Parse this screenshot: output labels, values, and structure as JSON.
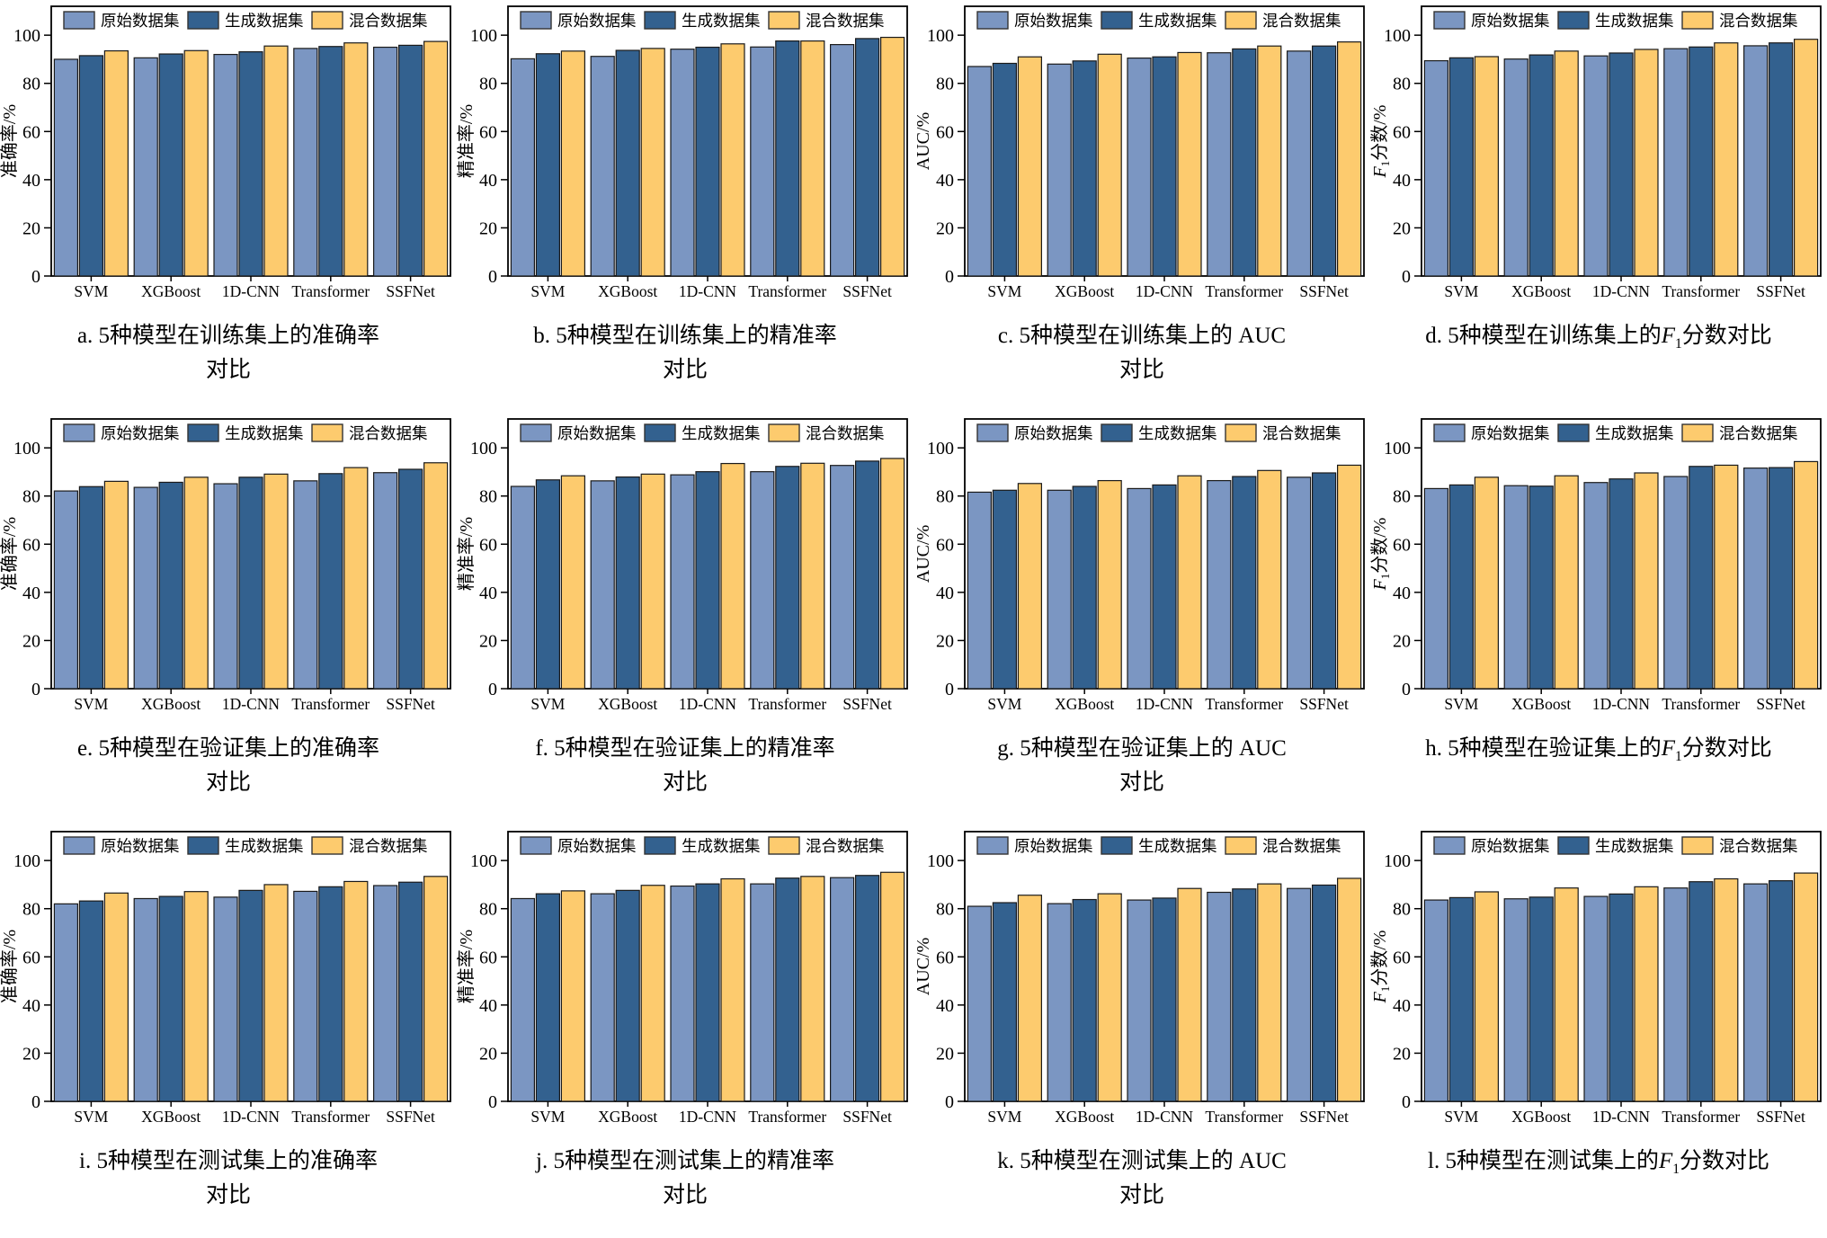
{
  "figure": {
    "background": "#ffffff",
    "series_names": [
      "原始数据集",
      "生成数据集",
      "混合数据集"
    ],
    "series_colors": [
      "#7B96C2",
      "#33618F",
      "#FDCB6E"
    ],
    "bar_edge_color": "#1a1a1a",
    "axis_color": "#000000",
    "categories": [
      "SVM",
      "XGBoost",
      "1D-CNN",
      "Transformer",
      "SSFNet"
    ],
    "yticks": [
      0,
      20,
      40,
      60,
      80,
      100
    ],
    "ylim": [
      0,
      112
    ],
    "legend_position": "top-inside",
    "grid": false
  },
  "chart_data": [
    {
      "id": "a",
      "type": "bar",
      "ylabel": "准确率/%",
      "xlabel": "",
      "caption_line1": "a. 5种模型在训练集上的准确率",
      "caption_line2": "对比",
      "categories": [
        "SVM",
        "XGBoost",
        "1D-CNN",
        "Transformer",
        "SSFNet"
      ],
      "ylim": [
        0,
        112
      ],
      "series": [
        {
          "name": "原始数据集",
          "values": [
            90.0,
            90.6,
            92.0,
            94.5,
            95.0
          ]
        },
        {
          "name": "生成数据集",
          "values": [
            91.5,
            92.2,
            93.1,
            95.3,
            95.8
          ]
        },
        {
          "name": "混合数据集",
          "values": [
            93.5,
            93.6,
            95.5,
            96.8,
            97.4
          ]
        }
      ]
    },
    {
      "id": "b",
      "type": "bar",
      "ylabel": "精准率/%",
      "xlabel": "",
      "caption_line1": "b. 5种模型在训练集上的精准率",
      "caption_line2": "对比",
      "categories": [
        "SVM",
        "XGBoost",
        "1D-CNN",
        "Transformer",
        "SSFNet"
      ],
      "ylim": [
        0,
        112
      ],
      "series": [
        {
          "name": "原始数据集",
          "values": [
            90.2,
            91.2,
            94.2,
            95.1,
            96.1
          ]
        },
        {
          "name": "生成数据集",
          "values": [
            92.3,
            93.7,
            95.0,
            97.6,
            98.6
          ]
        },
        {
          "name": "混合数据集",
          "values": [
            93.4,
            94.5,
            96.4,
            97.6,
            99.1
          ]
        }
      ]
    },
    {
      "id": "c",
      "type": "bar",
      "ylabel": "AUC/%",
      "xlabel": "",
      "caption_line1": "c. 5种模型在训练集上的 AUC",
      "caption_line2": "对比",
      "categories": [
        "SVM",
        "XGBoost",
        "1D-CNN",
        "Transformer",
        "SSFNet"
      ],
      "ylim": [
        0,
        112
      ],
      "series": [
        {
          "name": "原始数据集",
          "values": [
            87.0,
            88.0,
            90.5,
            92.7,
            93.4
          ]
        },
        {
          "name": "生成数据集",
          "values": [
            88.3,
            89.3,
            91.0,
            94.3,
            95.5
          ]
        },
        {
          "name": "混合数据集",
          "values": [
            91.0,
            92.1,
            92.8,
            95.5,
            97.2
          ]
        }
      ]
    },
    {
      "id": "d",
      "type": "bar",
      "ylabel": "F1分数/%",
      "xlabel": "",
      "caption_line1": "d. 5种模型在训练集上的F1分数对比",
      "caption_line2": "",
      "categories": [
        "SVM",
        "XGBoost",
        "1D-CNN",
        "Transformer",
        "SSFNet"
      ],
      "ylim": [
        0,
        112
      ],
      "series": [
        {
          "name": "原始数据集",
          "values": [
            89.4,
            90.1,
            91.4,
            94.4,
            95.6
          ]
        },
        {
          "name": "生成数据集",
          "values": [
            90.6,
            91.8,
            92.6,
            95.1,
            96.8
          ]
        },
        {
          "name": "混合数据集",
          "values": [
            91.1,
            93.4,
            94.1,
            96.8,
            98.3
          ]
        }
      ]
    },
    {
      "id": "e",
      "type": "bar",
      "ylabel": "准确率/%",
      "xlabel": "",
      "caption_line1": "e. 5种模型在验证集上的准确率",
      "caption_line2": "对比",
      "categories": [
        "SVM",
        "XGBoost",
        "1D-CNN",
        "Transformer",
        "SSFNet"
      ],
      "ylim": [
        0,
        112
      ],
      "series": [
        {
          "name": "原始数据集",
          "values": [
            82.1,
            83.6,
            85.1,
            86.3,
            89.7
          ]
        },
        {
          "name": "生成数据集",
          "values": [
            83.9,
            85.7,
            87.8,
            89.3,
            91.1
          ]
        },
        {
          "name": "混合数据集",
          "values": [
            86.1,
            87.8,
            89.1,
            91.8,
            93.8
          ]
        }
      ]
    },
    {
      "id": "f",
      "type": "bar",
      "ylabel": "精准率/%",
      "xlabel": "",
      "caption_line1": "f. 5种模型在验证集上的精准率",
      "caption_line2": "对比",
      "categories": [
        "SVM",
        "XGBoost",
        "1D-CNN",
        "Transformer",
        "SSFNet"
      ],
      "ylim": [
        0,
        112
      ],
      "series": [
        {
          "name": "原始数据集",
          "values": [
            84.0,
            86.3,
            88.8,
            90.1,
            92.7
          ]
        },
        {
          "name": "生成数据集",
          "values": [
            86.7,
            87.9,
            90.1,
            92.3,
            94.5
          ]
        },
        {
          "name": "混合数据集",
          "values": [
            88.4,
            89.1,
            93.5,
            93.6,
            95.6
          ]
        }
      ]
    },
    {
      "id": "g",
      "type": "bar",
      "ylabel": "AUC/%",
      "xlabel": "",
      "caption_line1": "g. 5种模型在验证集上的 AUC",
      "caption_line2": "对比",
      "categories": [
        "SVM",
        "XGBoost",
        "1D-CNN",
        "Transformer",
        "SSFNet"
      ],
      "ylim": [
        0,
        112
      ],
      "series": [
        {
          "name": "原始数据集",
          "values": [
            81.6,
            82.4,
            83.1,
            86.4,
            87.8
          ]
        },
        {
          "name": "生成数据集",
          "values": [
            82.4,
            84.0,
            84.6,
            88.1,
            89.6
          ]
        },
        {
          "name": "混合数据集",
          "values": [
            85.2,
            86.4,
            88.4,
            90.6,
            92.8
          ]
        }
      ]
    },
    {
      "id": "h",
      "type": "bar",
      "ylabel": "F1分数/%",
      "xlabel": "",
      "caption_line1": "h. 5种模型在验证集上的F1分数对比",
      "caption_line2": "",
      "categories": [
        "SVM",
        "XGBoost",
        "1D-CNN",
        "Transformer",
        "SSFNet"
      ],
      "ylim": [
        0,
        112
      ],
      "series": [
        {
          "name": "原始数据集",
          "values": [
            83.1,
            84.3,
            85.6,
            88.1,
            91.6
          ]
        },
        {
          "name": "生成数据集",
          "values": [
            84.6,
            84.1,
            87.1,
            92.3,
            91.8
          ]
        },
        {
          "name": "混合数据集",
          "values": [
            87.8,
            88.4,
            89.6,
            92.8,
            94.3
          ]
        }
      ]
    },
    {
      "id": "i",
      "type": "bar",
      "ylabel": "准确率/%",
      "xlabel": "",
      "caption_line1": "i. 5种模型在测试集上的准确率",
      "caption_line2": "对比",
      "categories": [
        "SVM",
        "XGBoost",
        "1D-CNN",
        "Transformer",
        "SSFNet"
      ],
      "ylim": [
        0,
        112
      ],
      "series": [
        {
          "name": "原始数据集",
          "values": [
            82.0,
            84.2,
            84.8,
            87.2,
            89.6
          ]
        },
        {
          "name": "生成数据集",
          "values": [
            83.2,
            85.1,
            87.6,
            89.1,
            91.0
          ]
        },
        {
          "name": "混合数据集",
          "values": [
            86.5,
            87.1,
            90.0,
            91.3,
            93.4
          ]
        }
      ]
    },
    {
      "id": "j",
      "type": "bar",
      "ylabel": "精准率/%",
      "xlabel": "",
      "caption_line1": "j. 5种模型在测试集上的精准率",
      "caption_line2": "对比",
      "categories": [
        "SVM",
        "XGBoost",
        "1D-CNN",
        "Transformer",
        "SSFNet"
      ],
      "ylim": [
        0,
        112
      ],
      "series": [
        {
          "name": "原始数据集",
          "values": [
            84.2,
            86.2,
            89.4,
            90.3,
            92.9
          ]
        },
        {
          "name": "生成数据集",
          "values": [
            86.2,
            87.6,
            90.3,
            92.7,
            93.8
          ]
        },
        {
          "name": "混合数据集",
          "values": [
            87.4,
            89.7,
            92.4,
            93.4,
            95.1
          ]
        }
      ]
    },
    {
      "id": "k",
      "type": "bar",
      "ylabel": "AUC/%",
      "xlabel": "",
      "caption_line1": "k. 5种模型在测试集上的 AUC",
      "caption_line2": "对比",
      "categories": [
        "SVM",
        "XGBoost",
        "1D-CNN",
        "Transformer",
        "SSFNet"
      ],
      "ylim": [
        0,
        112
      ],
      "series": [
        {
          "name": "原始数据集",
          "values": [
            81.0,
            82.1,
            83.6,
            86.8,
            88.4
          ]
        },
        {
          "name": "生成数据集",
          "values": [
            82.5,
            83.8,
            84.4,
            88.2,
            89.8
          ]
        },
        {
          "name": "混合数据集",
          "values": [
            85.6,
            86.2,
            88.4,
            90.3,
            92.6
          ]
        }
      ]
    },
    {
      "id": "l",
      "type": "bar",
      "ylabel": "F1分数/%",
      "xlabel": "",
      "caption_line1": "l. 5种模型在测试集上的F1分数对比",
      "caption_line2": "",
      "categories": [
        "SVM",
        "XGBoost",
        "1D-CNN",
        "Transformer",
        "SSFNet"
      ],
      "ylim": [
        0,
        112
      ],
      "series": [
        {
          "name": "原始数据集",
          "values": [
            83.6,
            84.1,
            85.1,
            88.6,
            90.3
          ]
        },
        {
          "name": "生成数据集",
          "values": [
            84.6,
            84.8,
            86.1,
            91.2,
            91.6
          ]
        },
        {
          "name": "混合数据集",
          "values": [
            87.0,
            88.6,
            89.1,
            92.4,
            94.8
          ]
        }
      ]
    }
  ]
}
